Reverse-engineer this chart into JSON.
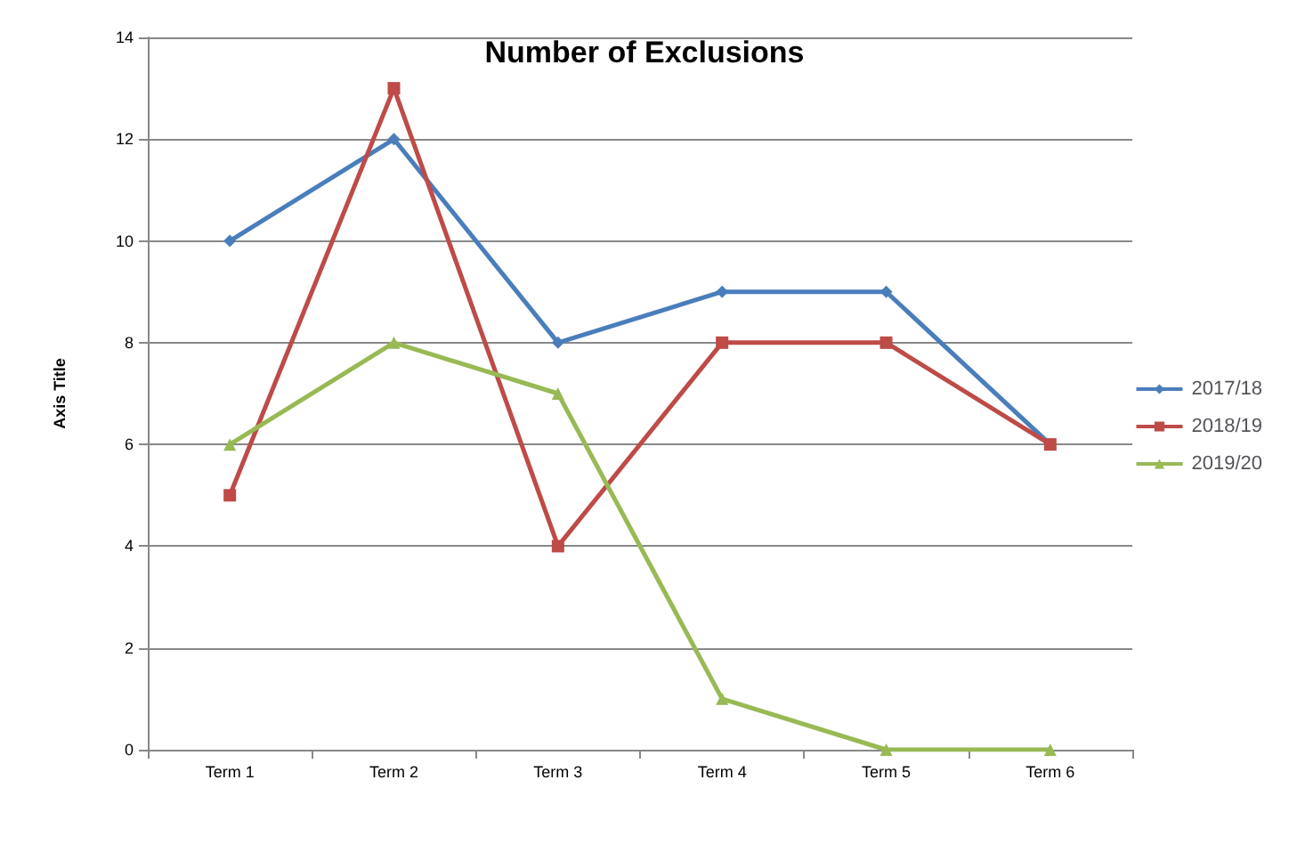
{
  "chart_data": {
    "type": "line",
    "title": "Number of Exclusions",
    "ylabel": "Axis Title",
    "categories": [
      "Term 1",
      "Term 2",
      "Term 3",
      "Term 4",
      "Term 5",
      "Term 6"
    ],
    "series": [
      {
        "name": "2017/18",
        "color": "#4a7ebb",
        "marker": "diamond",
        "values": [
          10,
          12,
          8,
          9,
          9,
          6
        ]
      },
      {
        "name": "2018/19",
        "color": "#be4b48",
        "marker": "square",
        "values": [
          5,
          13,
          4,
          8,
          8,
          6
        ]
      },
      {
        "name": "2019/20",
        "color": "#98b954",
        "marker": "triangle",
        "values": [
          6,
          8,
          7,
          1,
          0,
          0
        ]
      }
    ],
    "ylim": [
      0,
      14
    ],
    "yticks": [
      0,
      2,
      4,
      6,
      8,
      10,
      12,
      14
    ],
    "grid": "y",
    "legend": "right"
  }
}
